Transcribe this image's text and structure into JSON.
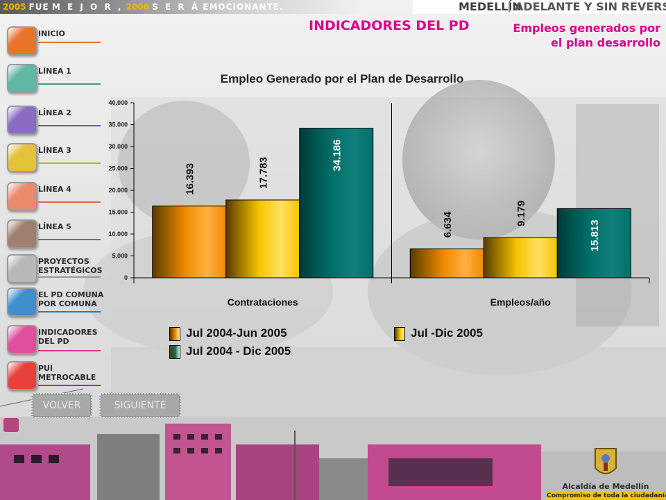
{
  "banner": {
    "slogan": {
      "part1": "2005",
      "part2": "FUE",
      "part3": "M E J O R ,",
      "part4": "2006",
      "part5": "S E R Á",
      "part6": "EMOCIONANTE."
    },
    "city": "MEDELLÍN",
    "motto": "ADELANTE Y SIN REVERSA"
  },
  "page": {
    "title": "INDICADORES DEL PD",
    "subtitle_line1": "Empleos generados por",
    "subtitle_line2": "el plan desarrollo"
  },
  "menu": {
    "items": [
      {
        "line1": "INICIO",
        "line2": "",
        "color": "#e8732a",
        "underline": "#e8732a"
      },
      {
        "line1": "LÍNEA 1",
        "line2": "",
        "color": "#5fb8a6",
        "underline": "#3c9f8c"
      },
      {
        "line1": "LÍNEA 2",
        "line2": "",
        "color": "#8a6cc4",
        "underline": "#7052b5"
      },
      {
        "line1": "LÍNEA 3",
        "line2": "",
        "color": "#e3c23a",
        "underline": "#d3aa10"
      },
      {
        "line1": "LÍNEA 4",
        "line2": "",
        "color": "#ec8a6e",
        "underline": "#e06a4a"
      },
      {
        "line1": "LÍNEA 5",
        "line2": "",
        "color": "#9f8070",
        "underline": "#86685a"
      },
      {
        "line1": "PROYECTOS",
        "line2": "ESTRATÉGICOS",
        "color": "#b8b8b8",
        "underline": "#999999"
      },
      {
        "line1": "EL PD COMUNA",
        "line2": "POR COMUNA",
        "color": "#3f8fcf",
        "underline": "#2d78b8"
      },
      {
        "line1": "INDICADORES",
        "line2": "DEL PD",
        "color": "#e04f9e",
        "underline": "#d23a8c"
      },
      {
        "line1": "PUI",
        "line2": "METROCABLE",
        "color": "#e8403a",
        "underline": "#d22a24"
      }
    ]
  },
  "nav": {
    "back": "VOLVER",
    "next": "SIGUIENTE"
  },
  "colors": {
    "accent": "#e0008a",
    "series1": "#f08a00",
    "series2": "#f5c400",
    "series3": "#00706a"
  },
  "logo": {
    "name": "Alcaldía de Medellín",
    "tagline": "Compromiso de toda la ciudadanía"
  },
  "chart_data": {
    "type": "bar",
    "title": "Empleo Generado por el Plan de Desarrollo",
    "categories": [
      "Contrataciones",
      "Empleos/año"
    ],
    "series": [
      {
        "name": "Jul 2004-Jun 2005",
        "values": [
          16393,
          6634
        ],
        "labels": [
          "16.393",
          "6.634"
        ],
        "color": "#f08a00"
      },
      {
        "name": "Jul -Dic 2005",
        "values": [
          17783,
          9179
        ],
        "labels": [
          "17.783",
          "9.179"
        ],
        "color": "#f5c400"
      },
      {
        "name": "Jul 2004 - Dic 2005",
        "values": [
          34186,
          15813
        ],
        "labels": [
          "34.186",
          "15.813"
        ],
        "color": "#00706a"
      }
    ],
    "ylim": [
      0,
      40000
    ],
    "yticks": [
      "0",
      "5.000",
      "10.000",
      "15.000",
      "20.000",
      "25.000",
      "30.000",
      "35.000",
      "40.000"
    ],
    "grid": false,
    "legend": "bottom"
  }
}
